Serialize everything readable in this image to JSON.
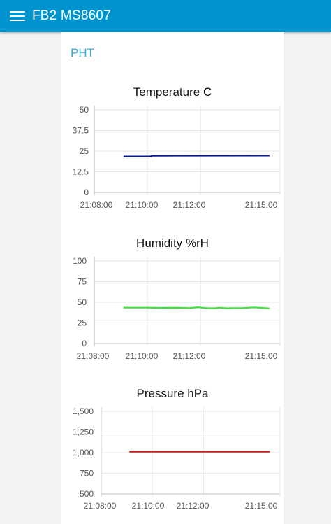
{
  "header": {
    "title": "FB2 MS8607",
    "menu_icon": "hamburger-menu-icon",
    "color": "#0094ce"
  },
  "group": {
    "title": "PHT"
  },
  "chart_data": [
    {
      "type": "line",
      "title": "Temperature C",
      "x_ticks": [
        "21:08:00",
        "21:10:00",
        "21:12:00",
        "21:15:00"
      ],
      "y_ticks": [
        "50",
        "37.5",
        "25",
        "12.5",
        "0"
      ],
      "ylim": [
        0,
        50
      ],
      "xlim_minutes": [
        0,
        7
      ],
      "x_tick_minutes": [
        0,
        2,
        4,
        7
      ],
      "grid": true,
      "series": [
        {
          "color": "#0a1a8c",
          "x_minutes": [
            1.1,
            2.1,
            2.2,
            6.6
          ],
          "y": [
            21.8,
            21.8,
            22.2,
            22.3
          ]
        }
      ]
    },
    {
      "type": "line",
      "title": "Humidity %rH",
      "x_ticks": [
        "21:08:00",
        "21:10:00",
        "21:12:00",
        "21:15:00"
      ],
      "y_ticks": [
        "100",
        "75",
        "50",
        "25",
        "0"
      ],
      "ylim": [
        0,
        100
      ],
      "xlim_minutes": [
        0,
        7
      ],
      "x_tick_minutes": [
        0,
        2,
        4,
        7
      ],
      "grid": true,
      "series": [
        {
          "color": "#3be33b",
          "x_minutes": [
            1.1,
            2.0,
            2.4,
            3.0,
            3.6,
            3.9,
            4.2,
            4.6,
            4.7,
            5.0,
            5.2,
            5.6,
            6.0,
            6.6
          ],
          "y": [
            43.5,
            43.5,
            43.2,
            43.4,
            43.0,
            44.0,
            43.0,
            42.8,
            43.5,
            42.7,
            43.0,
            43.0,
            43.8,
            42.6
          ]
        }
      ]
    },
    {
      "type": "line",
      "title": "Pressure hPa",
      "x_ticks": [
        "21:08:00",
        "21:10:00",
        "21:12:00",
        "21:15:00"
      ],
      "y_ticks": [
        "1,500",
        "1,250",
        "1,000",
        "750",
        "500"
      ],
      "ylim": [
        500,
        1500
      ],
      "xlim_minutes": [
        0,
        7
      ],
      "x_tick_minutes": [
        0,
        2,
        4,
        7
      ],
      "grid": true,
      "series": [
        {
          "color": "#d61a1a",
          "x_minutes": [
            1.1,
            6.6
          ],
          "y": [
            1012,
            1012
          ]
        }
      ]
    }
  ]
}
